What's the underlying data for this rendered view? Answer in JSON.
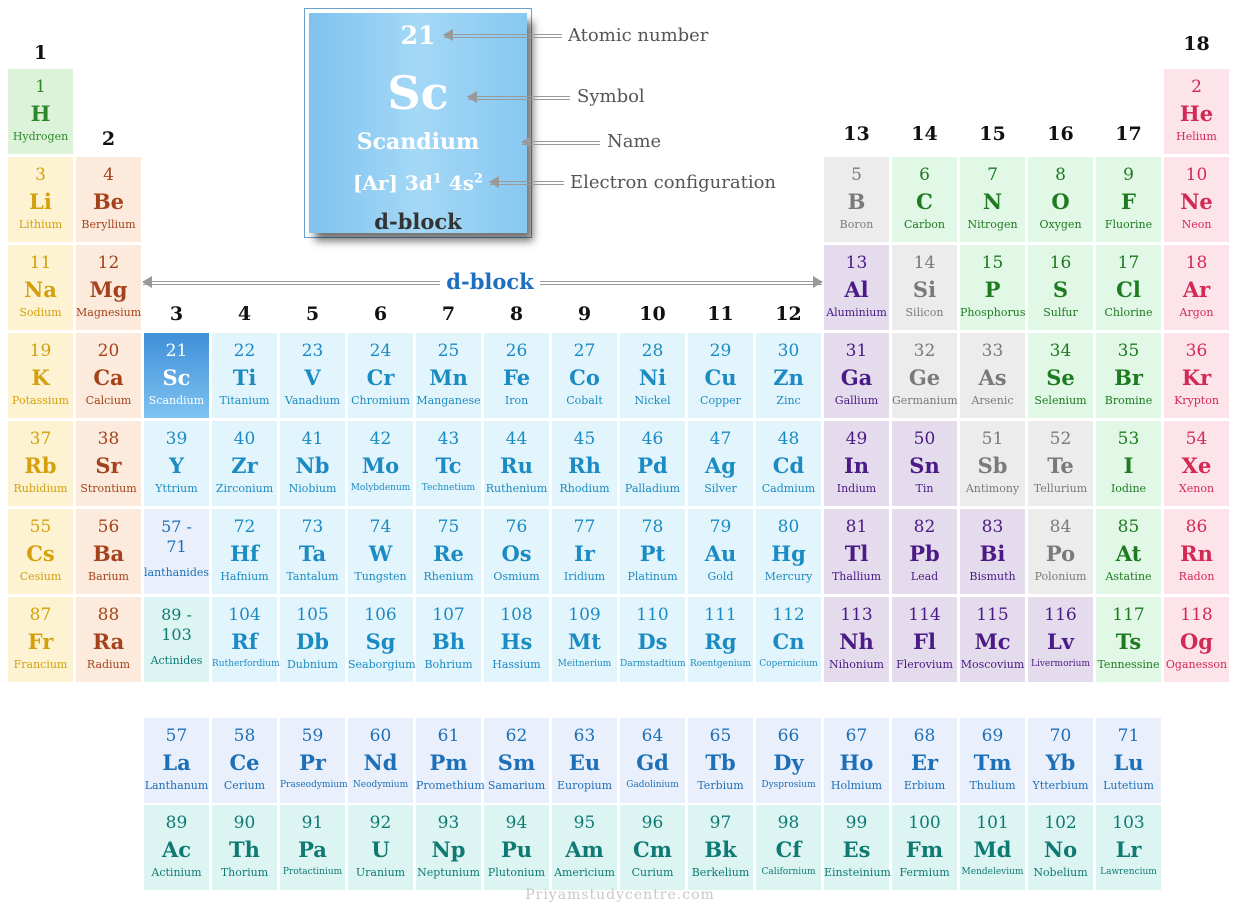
{
  "colors": {
    "alkali": {
      "bg": "#fdf3d2",
      "fg": "#d4a10c"
    },
    "alkaline": {
      "bg": "#fcebdc",
      "fg": "#a5421c"
    },
    "hydrogen": {
      "bg": "#ddf3d9",
      "fg": "#2a8a2a"
    },
    "nonmetal": {
      "bg": "#e0f8e5",
      "fg": "#1f7a22"
    },
    "metalloid": {
      "bg": "#ececec",
      "fg": "#7a7a7a"
    },
    "posttrans": {
      "bg": "#e4dbec",
      "fg": "#4a1a86"
    },
    "halogen": {
      "bg": "#e0f8e5",
      "fg": "#1f7a22"
    },
    "noble": {
      "bg": "#fde3ea",
      "fg": "#d22a55"
    },
    "transition": {
      "bg": "#e3f5fc",
      "fg": "#1b8bc3"
    },
    "highlight": {
      "bg": "#5aaee8",
      "fg": "#ffffff"
    },
    "lanthanide": {
      "bg": "#e9f0fc",
      "fg": "#1d6fb8"
    },
    "actinide": {
      "bg": "#dcf5f2",
      "fg": "#0f7a74"
    }
  },
  "group_labels": [
    {
      "text": "1",
      "col": 1
    },
    {
      "text": "2",
      "col": 2
    },
    {
      "text": "3",
      "col": 3
    },
    {
      "text": "4",
      "col": 4
    },
    {
      "text": "5",
      "col": 5
    },
    {
      "text": "6",
      "col": 6
    },
    {
      "text": "7",
      "col": 7
    },
    {
      "text": "8",
      "col": 8
    },
    {
      "text": "9",
      "col": 9
    },
    {
      "text": "10",
      "col": 10
    },
    {
      "text": "11",
      "col": 11
    },
    {
      "text": "12",
      "col": 12
    },
    {
      "text": "13",
      "col": 13
    },
    {
      "text": "14",
      "col": 14
    },
    {
      "text": "15",
      "col": 15
    },
    {
      "text": "16",
      "col": 16
    },
    {
      "text": "17",
      "col": 17
    },
    {
      "text": "18",
      "col": 18
    }
  ],
  "elements": [
    {
      "n": "1",
      "s": "H",
      "name": "Hydrogen",
      "col": 1,
      "row": 1,
      "cat": "hydrogen"
    },
    {
      "n": "2",
      "s": "He",
      "name": "Helium",
      "col": 18,
      "row": 1,
      "cat": "noble"
    },
    {
      "n": "3",
      "s": "Li",
      "name": "Lithium",
      "col": 1,
      "row": 2,
      "cat": "alkali"
    },
    {
      "n": "4",
      "s": "Be",
      "name": "Beryllium",
      "col": 2,
      "row": 2,
      "cat": "alkaline"
    },
    {
      "n": "5",
      "s": "B",
      "name": "Boron",
      "col": 13,
      "row": 2,
      "cat": "metalloid"
    },
    {
      "n": "6",
      "s": "C",
      "name": "Carbon",
      "col": 14,
      "row": 2,
      "cat": "nonmetal"
    },
    {
      "n": "7",
      "s": "N",
      "name": "Nitrogen",
      "col": 15,
      "row": 2,
      "cat": "nonmetal"
    },
    {
      "n": "8",
      "s": "O",
      "name": "Oxygen",
      "col": 16,
      "row": 2,
      "cat": "nonmetal"
    },
    {
      "n": "9",
      "s": "F",
      "name": "Fluorine",
      "col": 17,
      "row": 2,
      "cat": "halogen"
    },
    {
      "n": "10",
      "s": "Ne",
      "name": "Neon",
      "col": 18,
      "row": 2,
      "cat": "noble"
    },
    {
      "n": "11",
      "s": "Na",
      "name": "Sodium",
      "col": 1,
      "row": 3,
      "cat": "alkali"
    },
    {
      "n": "12",
      "s": "Mg",
      "name": "Magnesium",
      "col": 2,
      "row": 3,
      "cat": "alkaline"
    },
    {
      "n": "13",
      "s": "Al",
      "name": "Aluminium",
      "col": 13,
      "row": 3,
      "cat": "posttrans"
    },
    {
      "n": "14",
      "s": "Si",
      "name": "Silicon",
      "col": 14,
      "row": 3,
      "cat": "metalloid"
    },
    {
      "n": "15",
      "s": "P",
      "name": "Phosphorus",
      "col": 15,
      "row": 3,
      "cat": "nonmetal"
    },
    {
      "n": "16",
      "s": "S",
      "name": "Sulfur",
      "col": 16,
      "row": 3,
      "cat": "nonmetal"
    },
    {
      "n": "17",
      "s": "Cl",
      "name": "Chlorine",
      "col": 17,
      "row": 3,
      "cat": "halogen"
    },
    {
      "n": "18",
      "s": "Ar",
      "name": "Argon",
      "col": 18,
      "row": 3,
      "cat": "noble"
    },
    {
      "n": "19",
      "s": "K",
      "name": "Potassium",
      "col": 1,
      "row": 4,
      "cat": "alkali"
    },
    {
      "n": "20",
      "s": "Ca",
      "name": "Calcium",
      "col": 2,
      "row": 4,
      "cat": "alkaline"
    },
    {
      "n": "21",
      "s": "Sc",
      "name": "Scandium",
      "col": 3,
      "row": 4,
      "cat": "highlight"
    },
    {
      "n": "22",
      "s": "Ti",
      "name": "Titanium",
      "col": 4,
      "row": 4,
      "cat": "transition"
    },
    {
      "n": "23",
      "s": "V",
      "name": "Vanadium",
      "col": 5,
      "row": 4,
      "cat": "transition"
    },
    {
      "n": "24",
      "s": "Cr",
      "name": "Chromium",
      "col": 6,
      "row": 4,
      "cat": "transition"
    },
    {
      "n": "25",
      "s": "Mn",
      "name": "Manganese",
      "col": 7,
      "row": 4,
      "cat": "transition"
    },
    {
      "n": "26",
      "s": "Fe",
      "name": "Iron",
      "col": 8,
      "row": 4,
      "cat": "transition"
    },
    {
      "n": "27",
      "s": "Co",
      "name": "Cobalt",
      "col": 9,
      "row": 4,
      "cat": "transition"
    },
    {
      "n": "28",
      "s": "Ni",
      "name": "Nickel",
      "col": 10,
      "row": 4,
      "cat": "transition"
    },
    {
      "n": "29",
      "s": "Cu",
      "name": "Copper",
      "col": 11,
      "row": 4,
      "cat": "transition"
    },
    {
      "n": "30",
      "s": "Zn",
      "name": "Zinc",
      "col": 12,
      "row": 4,
      "cat": "transition"
    },
    {
      "n": "31",
      "s": "Ga",
      "name": "Gallium",
      "col": 13,
      "row": 4,
      "cat": "posttrans"
    },
    {
      "n": "32",
      "s": "Ge",
      "name": "Germanium",
      "col": 14,
      "row": 4,
      "cat": "metalloid"
    },
    {
      "n": "33",
      "s": "As",
      "name": "Arsenic",
      "col": 15,
      "row": 4,
      "cat": "metalloid"
    },
    {
      "n": "34",
      "s": "Se",
      "name": "Selenium",
      "col": 16,
      "row": 4,
      "cat": "nonmetal"
    },
    {
      "n": "35",
      "s": "Br",
      "name": "Bromine",
      "col": 17,
      "row": 4,
      "cat": "halogen"
    },
    {
      "n": "36",
      "s": "Kr",
      "name": "Krypton",
      "col": 18,
      "row": 4,
      "cat": "noble"
    },
    {
      "n": "37",
      "s": "Rb",
      "name": "Rubidium",
      "col": 1,
      "row": 5,
      "cat": "alkali"
    },
    {
      "n": "38",
      "s": "Sr",
      "name": "Strontium",
      "col": 2,
      "row": 5,
      "cat": "alkaline"
    },
    {
      "n": "39",
      "s": "Y",
      "name": "Yttrium",
      "col": 3,
      "row": 5,
      "cat": "transition"
    },
    {
      "n": "40",
      "s": "Zr",
      "name": "Zirconium",
      "col": 4,
      "row": 5,
      "cat": "transition"
    },
    {
      "n": "41",
      "s": "Nb",
      "name": "Niobium",
      "col": 5,
      "row": 5,
      "cat": "transition"
    },
    {
      "n": "42",
      "s": "Mo",
      "name": "Molybdenum",
      "col": 6,
      "row": 5,
      "cat": "transition",
      "small": true
    },
    {
      "n": "43",
      "s": "Tc",
      "name": "Technetium",
      "col": 7,
      "row": 5,
      "cat": "transition",
      "small": true
    },
    {
      "n": "44",
      "s": "Ru",
      "name": "Ruthenium",
      "col": 8,
      "row": 5,
      "cat": "transition"
    },
    {
      "n": "45",
      "s": "Rh",
      "name": "Rhodium",
      "col": 9,
      "row": 5,
      "cat": "transition"
    },
    {
      "n": "46",
      "s": "Pd",
      "name": "Palladium",
      "col": 10,
      "row": 5,
      "cat": "transition"
    },
    {
      "n": "47",
      "s": "Ag",
      "name": "Silver",
      "col": 11,
      "row": 5,
      "cat": "transition"
    },
    {
      "n": "48",
      "s": "Cd",
      "name": "Cadmium",
      "col": 12,
      "row": 5,
      "cat": "transition"
    },
    {
      "n": "49",
      "s": "In",
      "name": "Indium",
      "col": 13,
      "row": 5,
      "cat": "posttrans"
    },
    {
      "n": "50",
      "s": "Sn",
      "name": "Tin",
      "col": 14,
      "row": 5,
      "cat": "posttrans"
    },
    {
      "n": "51",
      "s": "Sb",
      "name": "Antimony",
      "col": 15,
      "row": 5,
      "cat": "metalloid"
    },
    {
      "n": "52",
      "s": "Te",
      "name": "Tellurium",
      "col": 16,
      "row": 5,
      "cat": "metalloid"
    },
    {
      "n": "53",
      "s": "I",
      "name": "Iodine",
      "col": 17,
      "row": 5,
      "cat": "halogen"
    },
    {
      "n": "54",
      "s": "Xe",
      "name": "Xenon",
      "col": 18,
      "row": 5,
      "cat": "noble"
    },
    {
      "n": "55",
      "s": "Cs",
      "name": "Cesium",
      "col": 1,
      "row": 6,
      "cat": "alkali"
    },
    {
      "n": "56",
      "s": "Ba",
      "name": "Barium",
      "col": 2,
      "row": 6,
      "cat": "alkaline"
    },
    {
      "n": "72",
      "s": "Hf",
      "name": "Hafnium",
      "col": 4,
      "row": 6,
      "cat": "transition"
    },
    {
      "n": "73",
      "s": "Ta",
      "name": "Tantalum",
      "col": 5,
      "row": 6,
      "cat": "transition"
    },
    {
      "n": "74",
      "s": "W",
      "name": "Tungsten",
      "col": 6,
      "row": 6,
      "cat": "transition"
    },
    {
      "n": "75",
      "s": "Re",
      "name": "Rhenium",
      "col": 7,
      "row": 6,
      "cat": "transition"
    },
    {
      "n": "76",
      "s": "Os",
      "name": "Osmium",
      "col": 8,
      "row": 6,
      "cat": "transition"
    },
    {
      "n": "77",
      "s": "Ir",
      "name": "Iridium",
      "col": 9,
      "row": 6,
      "cat": "transition"
    },
    {
      "n": "78",
      "s": "Pt",
      "name": "Platinum",
      "col": 10,
      "row": 6,
      "cat": "transition"
    },
    {
      "n": "79",
      "s": "Au",
      "name": "Gold",
      "col": 11,
      "row": 6,
      "cat": "transition"
    },
    {
      "n": "80",
      "s": "Hg",
      "name": "Mercury",
      "col": 12,
      "row": 6,
      "cat": "transition"
    },
    {
      "n": "81",
      "s": "Tl",
      "name": "Thallium",
      "col": 13,
      "row": 6,
      "cat": "posttrans"
    },
    {
      "n": "82",
      "s": "Pb",
      "name": "Lead",
      "col": 14,
      "row": 6,
      "cat": "posttrans"
    },
    {
      "n": "83",
      "s": "Bi",
      "name": "Bismuth",
      "col": 15,
      "row": 6,
      "cat": "posttrans"
    },
    {
      "n": "84",
      "s": "Po",
      "name": "Polonium",
      "col": 16,
      "row": 6,
      "cat": "metalloid"
    },
    {
      "n": "85",
      "s": "At",
      "name": "Astatine",
      "col": 17,
      "row": 6,
      "cat": "halogen"
    },
    {
      "n": "86",
      "s": "Rn",
      "name": "Radon",
      "col": 18,
      "row": 6,
      "cat": "noble"
    },
    {
      "n": "87",
      "s": "Fr",
      "name": "Francium",
      "col": 1,
      "row": 7,
      "cat": "alkali"
    },
    {
      "n": "88",
      "s": "Ra",
      "name": "Radium",
      "col": 2,
      "row": 7,
      "cat": "alkaline"
    },
    {
      "n": "104",
      "s": "Rf",
      "name": "Rutherfordium",
      "col": 4,
      "row": 7,
      "cat": "transition",
      "small": true
    },
    {
      "n": "105",
      "s": "Db",
      "name": "Dubnium",
      "col": 5,
      "row": 7,
      "cat": "transition"
    },
    {
      "n": "106",
      "s": "Sg",
      "name": "Seaborgium",
      "col": 6,
      "row": 7,
      "cat": "transition"
    },
    {
      "n": "107",
      "s": "Bh",
      "name": "Bohrium",
      "col": 7,
      "row": 7,
      "cat": "transition"
    },
    {
      "n": "108",
      "s": "Hs",
      "name": "Hassium",
      "col": 8,
      "row": 7,
      "cat": "transition"
    },
    {
      "n": "109",
      "s": "Mt",
      "name": "Meitnerium",
      "col": 9,
      "row": 7,
      "cat": "transition",
      "small": true
    },
    {
      "n": "110",
      "s": "Ds",
      "name": "Darmstadtium",
      "col": 10,
      "row": 7,
      "cat": "transition",
      "small": true
    },
    {
      "n": "111",
      "s": "Rg",
      "name": "Roentgenium",
      "col": 11,
      "row": 7,
      "cat": "transition",
      "small": true
    },
    {
      "n": "112",
      "s": "Cn",
      "name": "Copernicium",
      "col": 12,
      "row": 7,
      "cat": "transition",
      "small": true
    },
    {
      "n": "113",
      "s": "Nh",
      "name": "Nihonium",
      "col": 13,
      "row": 7,
      "cat": "posttrans"
    },
    {
      "n": "114",
      "s": "Fl",
      "name": "Flerovium",
      "col": 14,
      "row": 7,
      "cat": "posttrans"
    },
    {
      "n": "115",
      "s": "Mc",
      "name": "Moscovium",
      "col": 15,
      "row": 7,
      "cat": "posttrans"
    },
    {
      "n": "116",
      "s": "Lv",
      "name": "Livermorium",
      "col": 16,
      "row": 7,
      "cat": "posttrans",
      "small": true
    },
    {
      "n": "117",
      "s": "Ts",
      "name": "Tennessine",
      "col": 17,
      "row": 7,
      "cat": "halogen"
    },
    {
      "n": "118",
      "s": "Og",
      "name": "Oganesson",
      "col": 18,
      "row": 7,
      "cat": "noble"
    },
    {
      "n": "57",
      "s": "La",
      "name": "Lanthanum",
      "col": 3,
      "row": 9,
      "cat": "lanthanide"
    },
    {
      "n": "58",
      "s": "Ce",
      "name": "Cerium",
      "col": 4,
      "row": 9,
      "cat": "lanthanide"
    },
    {
      "n": "59",
      "s": "Pr",
      "name": "Praseodymium",
      "col": 5,
      "row": 9,
      "cat": "lanthanide",
      "small": true
    },
    {
      "n": "60",
      "s": "Nd",
      "name": "Neodymium",
      "col": 6,
      "row": 9,
      "cat": "lanthanide",
      "small": true
    },
    {
      "n": "61",
      "s": "Pm",
      "name": "Promethium",
      "col": 7,
      "row": 9,
      "cat": "lanthanide"
    },
    {
      "n": "62",
      "s": "Sm",
      "name": "Samarium",
      "col": 8,
      "row": 9,
      "cat": "lanthanide"
    },
    {
      "n": "63",
      "s": "Eu",
      "name": "Europium",
      "col": 9,
      "row": 9,
      "cat": "lanthanide"
    },
    {
      "n": "64",
      "s": "Gd",
      "name": "Gadolinium",
      "col": 10,
      "row": 9,
      "cat": "lanthanide",
      "small": true
    },
    {
      "n": "65",
      "s": "Tb",
      "name": "Terbium",
      "col": 11,
      "row": 9,
      "cat": "lanthanide"
    },
    {
      "n": "66",
      "s": "Dy",
      "name": "Dysprosium",
      "col": 12,
      "row": 9,
      "cat": "lanthanide",
      "small": true
    },
    {
      "n": "67",
      "s": "Ho",
      "name": "Holmium",
      "col": 13,
      "row": 9,
      "cat": "lanthanide"
    },
    {
      "n": "68",
      "s": "Er",
      "name": "Erbium",
      "col": 14,
      "row": 9,
      "cat": "lanthanide"
    },
    {
      "n": "69",
      "s": "Tm",
      "name": "Thulium",
      "col": 15,
      "row": 9,
      "cat": "lanthanide"
    },
    {
      "n": "70",
      "s": "Yb",
      "name": "Ytterbium",
      "col": 16,
      "row": 9,
      "cat": "lanthanide"
    },
    {
      "n": "71",
      "s": "Lu",
      "name": "Lutetium",
      "col": 17,
      "row": 9,
      "cat": "lanthanide"
    },
    {
      "n": "89",
      "s": "Ac",
      "name": "Actinium",
      "col": 3,
      "row": 10,
      "cat": "actinide"
    },
    {
      "n": "90",
      "s": "Th",
      "name": "Thorium",
      "col": 4,
      "row": 10,
      "cat": "actinide"
    },
    {
      "n": "91",
      "s": "Pa",
      "name": "Protactinium",
      "col": 5,
      "row": 10,
      "cat": "actinide",
      "small": true
    },
    {
      "n": "92",
      "s": "U",
      "name": "Uranium",
      "col": 6,
      "row": 10,
      "cat": "actinide"
    },
    {
      "n": "93",
      "s": "Np",
      "name": "Neptunium",
      "col": 7,
      "row": 10,
      "cat": "actinide"
    },
    {
      "n": "94",
      "s": "Pu",
      "name": "Plutonium",
      "col": 8,
      "row": 10,
      "cat": "actinide"
    },
    {
      "n": "95",
      "s": "Am",
      "name": "Americium",
      "col": 9,
      "row": 10,
      "cat": "actinide"
    },
    {
      "n": "96",
      "s": "Cm",
      "name": "Curium",
      "col": 10,
      "row": 10,
      "cat": "actinide"
    },
    {
      "n": "97",
      "s": "Bk",
      "name": "Berkelium",
      "col": 11,
      "row": 10,
      "cat": "actinide"
    },
    {
      "n": "98",
      "s": "Cf",
      "name": "Californium",
      "col": 12,
      "row": 10,
      "cat": "actinide",
      "small": true
    },
    {
      "n": "99",
      "s": "Es",
      "name": "Einsteinium",
      "col": 13,
      "row": 10,
      "cat": "actinide"
    },
    {
      "n": "100",
      "s": "Fm",
      "name": "Fermium",
      "col": 14,
      "row": 10,
      "cat": "actinide"
    },
    {
      "n": "101",
      "s": "Md",
      "name": "Mendelevium",
      "col": 15,
      "row": 10,
      "cat": "actinide",
      "small": true
    },
    {
      "n": "102",
      "s": "No",
      "name": "Nobelium",
      "col": 16,
      "row": 10,
      "cat": "actinide"
    },
    {
      "n": "103",
      "s": "Lr",
      "name": "Lawrencium",
      "col": 17,
      "row": 10,
      "cat": "actinide",
      "small": true
    }
  ],
  "ranges": [
    {
      "n": "57 -\n71",
      "name": "lanthanides",
      "col": 3,
      "row": 6,
      "cat": "lanthanide"
    },
    {
      "n": "89 -\n103",
      "name": "Actinides",
      "col": 3,
      "row": 7,
      "cat": "actinide"
    }
  ],
  "legend": {
    "atomic_number": "21",
    "symbol": "Sc",
    "name": "Scandium",
    "config": "[Ar] 3d",
    "config_sup1": "1",
    "config_mid": " 4s",
    "config_sup2": "2",
    "block": "d-block",
    "ann_atomic": "Atomic number",
    "ann_symbol": "Symbol",
    "ann_name": "Name",
    "ann_config": "Electron configuration"
  },
  "dblock_label": "d-block",
  "watermark": "Priyamstudycentre.com"
}
